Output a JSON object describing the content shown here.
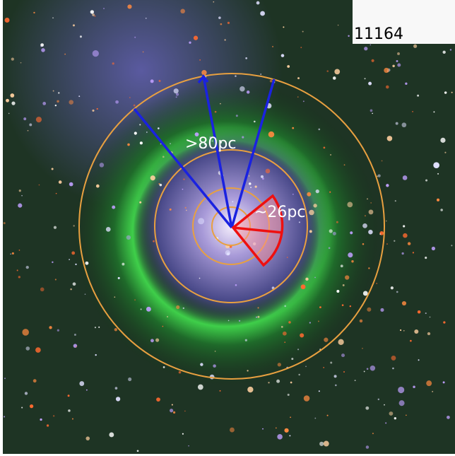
{
  "image_id": "11164",
  "annotations": {
    "outer": ">80pc",
    "inner": "~26pc"
  }
}
